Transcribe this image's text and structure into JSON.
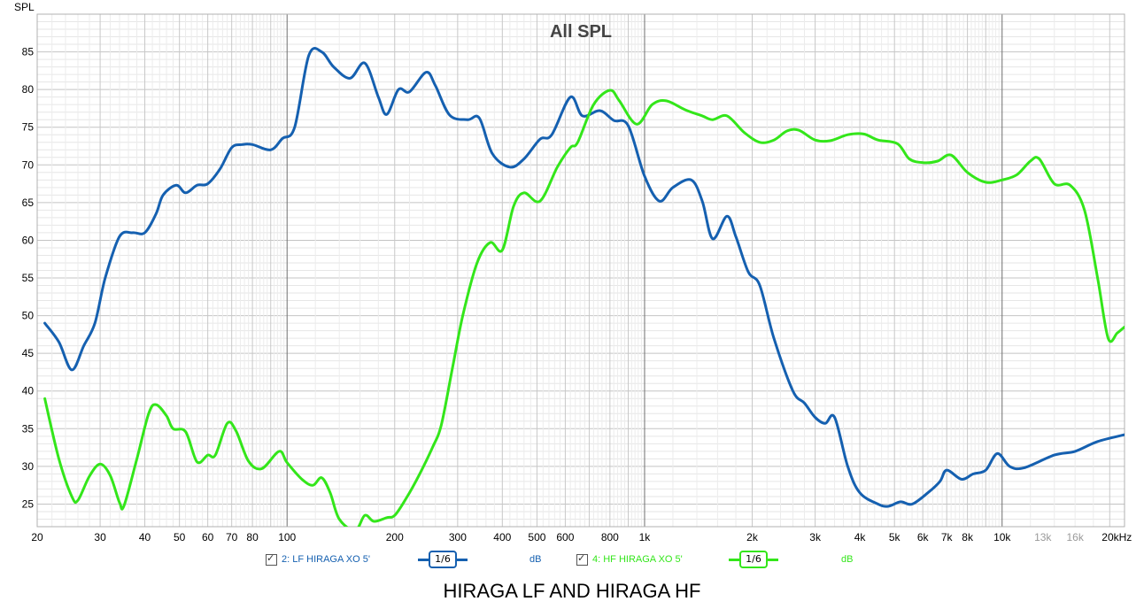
{
  "chart_data": {
    "type": "line",
    "title": "All SPL",
    "ylabel": "SPL",
    "x_unit_label": "20kHz",
    "x_scale": "log",
    "xlim": [
      20,
      22000
    ],
    "ylim": [
      22,
      90
    ],
    "grid": true,
    "x_ticks": [
      "20",
      "30",
      "40",
      "50",
      "60",
      "70",
      "80",
      "100",
      "200",
      "300",
      "400",
      "500",
      "600",
      "800",
      "1k",
      "2k",
      "3k",
      "4k",
      "5k",
      "6k",
      "7k",
      "8k",
      "10k",
      "13k",
      "16k",
      "20kHz"
    ],
    "x_tick_values": [
      20,
      30,
      40,
      50,
      60,
      70,
      80,
      100,
      200,
      300,
      400,
      500,
      600,
      800,
      1000,
      2000,
      3000,
      4000,
      5000,
      6000,
      7000,
      8000,
      10000,
      13000,
      16000,
      20000
    ],
    "y_ticks": [
      25,
      30,
      35,
      40,
      45,
      50,
      55,
      60,
      65,
      70,
      75,
      80,
      85
    ],
    "series": [
      {
        "name": "2: LF HIRAGA XO 5'",
        "smoothing": "1/6",
        "unit": "dB",
        "color": "#1560b0",
        "points": [
          [
            21,
            49
          ],
          [
            23,
            46.5
          ],
          [
            25,
            42.8
          ],
          [
            27,
            46
          ],
          [
            29,
            49
          ],
          [
            31,
            55
          ],
          [
            34,
            60.5
          ],
          [
            37,
            61
          ],
          [
            40,
            61
          ],
          [
            43,
            63.5
          ],
          [
            45,
            66
          ],
          [
            49,
            67.3
          ],
          [
            52,
            66.3
          ],
          [
            56,
            67.3
          ],
          [
            60,
            67.5
          ],
          [
            65,
            69.5
          ],
          [
            70,
            72.3
          ],
          [
            75,
            72.7
          ],
          [
            80,
            72.7
          ],
          [
            90,
            72
          ],
          [
            97,
            73.5
          ],
          [
            105,
            75
          ],
          [
            115,
            84.5
          ],
          [
            125,
            85
          ],
          [
            135,
            83
          ],
          [
            150,
            81.5
          ],
          [
            165,
            83.5
          ],
          [
            180,
            79
          ],
          [
            190,
            76.7
          ],
          [
            205,
            80
          ],
          [
            220,
            79.7
          ],
          [
            245,
            82.3
          ],
          [
            260,
            80.5
          ],
          [
            285,
            76.6
          ],
          [
            320,
            76
          ],
          [
            345,
            76.2
          ],
          [
            375,
            71.5
          ],
          [
            420,
            69.7
          ],
          [
            460,
            70.8
          ],
          [
            510,
            73.4
          ],
          [
            550,
            74
          ],
          [
            620,
            79
          ],
          [
            670,
            76.5
          ],
          [
            750,
            77.2
          ],
          [
            820,
            75.9
          ],
          [
            900,
            75.2
          ],
          [
            1000,
            68.5
          ],
          [
            1100,
            65.2
          ],
          [
            1200,
            67
          ],
          [
            1350,
            68
          ],
          [
            1450,
            65.2
          ],
          [
            1550,
            60.2
          ],
          [
            1700,
            63.2
          ],
          [
            1800,
            60.5
          ],
          [
            1950,
            55.8
          ],
          [
            2100,
            54
          ],
          [
            2300,
            47
          ],
          [
            2600,
            40
          ],
          [
            2800,
            38.4
          ],
          [
            3000,
            36.5
          ],
          [
            3200,
            35.7
          ],
          [
            3400,
            36.5
          ],
          [
            3700,
            30
          ],
          [
            4000,
            26.5
          ],
          [
            4500,
            25
          ],
          [
            4800,
            24.7
          ],
          [
            5200,
            25.3
          ],
          [
            5600,
            25
          ],
          [
            6200,
            26.5
          ],
          [
            6700,
            28
          ],
          [
            7000,
            29.5
          ],
          [
            7700,
            28.3
          ],
          [
            8300,
            29
          ],
          [
            9000,
            29.5
          ],
          [
            9700,
            31.7
          ],
          [
            10500,
            30
          ],
          [
            11500,
            29.8
          ],
          [
            14000,
            31.5
          ],
          [
            16000,
            32
          ],
          [
            18500,
            33.3
          ],
          [
            22000,
            34.2
          ]
        ]
      },
      {
        "name": "4: HF HIRAGA XO 5'",
        "smoothing": "1/6",
        "unit": "dB",
        "color": "#33e61a",
        "points": [
          [
            21,
            39
          ],
          [
            23,
            31
          ],
          [
            25,
            26
          ],
          [
            26,
            25.5
          ],
          [
            28,
            28.7
          ],
          [
            30,
            30.3
          ],
          [
            32,
            28.8
          ],
          [
            34,
            25.2
          ],
          [
            35,
            24.8
          ],
          [
            38,
            31
          ],
          [
            41,
            37
          ],
          [
            43,
            38.2
          ],
          [
            46,
            36.7
          ],
          [
            48,
            35
          ],
          [
            52,
            34.6
          ],
          [
            56,
            30.6
          ],
          [
            60,
            31.5
          ],
          [
            63,
            31.5
          ],
          [
            68,
            35.7
          ],
          [
            72,
            34.7
          ],
          [
            78,
            30.7
          ],
          [
            85,
            29.7
          ],
          [
            95,
            32
          ],
          [
            100,
            30.5
          ],
          [
            110,
            28.3
          ],
          [
            118,
            27.5
          ],
          [
            125,
            28.5
          ],
          [
            132,
            26.5
          ],
          [
            140,
            23
          ],
          [
            155,
            21.5
          ],
          [
            165,
            23.5
          ],
          [
            175,
            22.7
          ],
          [
            190,
            23.2
          ],
          [
            200,
            23.5
          ],
          [
            215,
            25.7
          ],
          [
            235,
            29
          ],
          [
            255,
            32.5
          ],
          [
            270,
            35.5
          ],
          [
            290,
            43
          ],
          [
            310,
            50
          ],
          [
            340,
            57
          ],
          [
            370,
            59.7
          ],
          [
            400,
            58.7
          ],
          [
            430,
            64.5
          ],
          [
            460,
            66.3
          ],
          [
            510,
            65.2
          ],
          [
            570,
            69.7
          ],
          [
            620,
            72.3
          ],
          [
            650,
            73
          ],
          [
            720,
            78
          ],
          [
            800,
            79.9
          ],
          [
            850,
            78.5
          ],
          [
            950,
            75.4
          ],
          [
            1050,
            78
          ],
          [
            1150,
            78.5
          ],
          [
            1300,
            77.3
          ],
          [
            1450,
            76.5
          ],
          [
            1550,
            76
          ],
          [
            1700,
            76.5
          ],
          [
            1900,
            74.3
          ],
          [
            2100,
            73
          ],
          [
            2300,
            73.3
          ],
          [
            2500,
            74.5
          ],
          [
            2700,
            74.6
          ],
          [
            3000,
            73.3
          ],
          [
            3300,
            73.2
          ],
          [
            3700,
            74
          ],
          [
            4100,
            74.1
          ],
          [
            4500,
            73.3
          ],
          [
            5100,
            72.8
          ],
          [
            5500,
            70.8
          ],
          [
            6000,
            70.3
          ],
          [
            6600,
            70.5
          ],
          [
            7200,
            71.3
          ],
          [
            8000,
            69
          ],
          [
            9000,
            67.7
          ],
          [
            10000,
            68
          ],
          [
            11000,
            68.7
          ],
          [
            12000,
            70.5
          ],
          [
            12700,
            70.8
          ],
          [
            14000,
            67.5
          ],
          [
            15500,
            67.3
          ],
          [
            17000,
            64
          ],
          [
            18500,
            55
          ],
          [
            19800,
            47
          ],
          [
            21000,
            47.7
          ],
          [
            22000,
            48.5
          ]
        ]
      }
    ]
  },
  "caption": "HIRAGA LF AND HIRAGA HF",
  "legend": [
    {
      "label": "2: LF HIRAGA XO 5'",
      "smoothing": "1/6",
      "unit": "dB",
      "color": "#1560b0"
    },
    {
      "label": "4: HF HIRAGA XO 5'",
      "smoothing": "1/6",
      "unit": "dB",
      "color": "#33e61a"
    }
  ]
}
